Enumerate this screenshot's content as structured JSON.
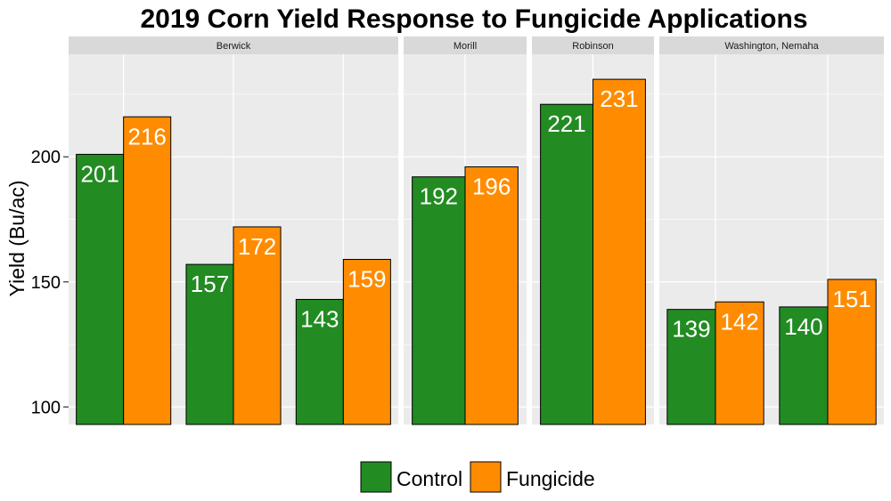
{
  "chart_data": {
    "type": "bar",
    "title": "2019 Corn Yield Response to Fungicide Applications",
    "xlabel": "",
    "ylabel": "Yield (Bu/ac)",
    "ylim": [
      93,
      241
    ],
    "yticks": [
      100,
      150,
      200
    ],
    "grid": true,
    "legend_position": "bottom",
    "series_names": [
      "Control",
      "Fungicide"
    ],
    "colors": {
      "Control": "#228B22",
      "Fungicide": "#FF8C00",
      "panel_bg": "#EBEBEB",
      "strip_bg": "#D9D9D9",
      "grid": "#FFFFFF"
    },
    "facets": [
      {
        "label": "Berwick",
        "groups": [
          {
            "values": [
              201,
              216
            ]
          },
          {
            "values": [
              157,
              172
            ]
          },
          {
            "values": [
              143,
              159
            ]
          }
        ]
      },
      {
        "label": "Morill",
        "groups": [
          {
            "values": [
              192,
              196
            ]
          }
        ]
      },
      {
        "label": "Robinson",
        "groups": [
          {
            "values": [
              221,
              231
            ]
          }
        ]
      },
      {
        "label": "Washington, Nemaha",
        "groups": [
          {
            "values": [
              139,
              142
            ]
          },
          {
            "values": [
              140,
              151
            ]
          }
        ]
      }
    ]
  }
}
